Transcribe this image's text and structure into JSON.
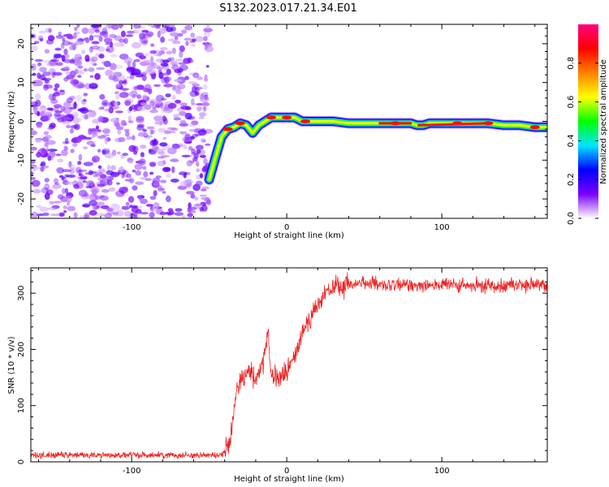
{
  "figure": {
    "title": "S132.2023.017.21.34.E01"
  },
  "chart_data": [
    {
      "type": "heatmap",
      "xlabel": "Height of straight line (km)",
      "ylabel": "Frequency (Hz)",
      "xlim": [
        -165,
        168
      ],
      "ylim": [
        -25,
        25
      ],
      "xticks": [
        -100,
        0,
        100
      ],
      "xtick_labels": [
        "-100",
        "0",
        "100"
      ],
      "yticks": [
        -20,
        -10,
        0,
        10,
        20
      ],
      "ytick_labels": [
        "-20",
        "-10",
        "0",
        "10",
        "20"
      ],
      "colorbar": {
        "label": "Normalized spectral amplitude",
        "range": [
          0,
          1
        ],
        "ticks": [
          0.0,
          0.2,
          0.4,
          0.6,
          0.8
        ],
        "tick_labels": [
          "0.0",
          "0.2",
          "0.4",
          "0.6",
          "0.8"
        ],
        "colors": [
          "#ffffff",
          "#7a00ff",
          "#0000ff",
          "#00e5ff",
          "#00ff00",
          "#ffff00",
          "#ff8000",
          "#ff0000",
          "#ff0080"
        ]
      },
      "noise_region_x": [
        -165,
        -50
      ],
      "ridge": {
        "x": [
          -50,
          -45,
          -42,
          -38,
          -34,
          -30,
          -26,
          -22,
          -18,
          -14,
          -10,
          -5,
          0,
          5,
          10,
          15,
          20,
          30,
          40,
          50,
          60,
          70,
          80,
          84,
          88,
          92,
          100,
          110,
          120,
          130,
          140,
          150,
          160,
          168
        ],
        "y": [
          -15,
          -8,
          -4,
          -2,
          -1.5,
          -0.5,
          -1,
          -3,
          -1,
          0,
          1,
          1,
          1,
          1,
          0,
          0,
          0,
          0,
          -0.5,
          -0.5,
          -0.5,
          -0.5,
          -0.5,
          -1,
          -1,
          -0.5,
          -0.5,
          -0.5,
          -0.5,
          -0.5,
          -1,
          -1,
          -1.5,
          -1.5
        ]
      },
      "ridge_peaks_x": [
        -38,
        -30,
        -10,
        0,
        12,
        70,
        110,
        130,
        160
      ]
    },
    {
      "type": "line",
      "xlabel": "Height of straight line (km)",
      "ylabel": "SNR (10 * v/v)",
      "xlim": [
        -165,
        168
      ],
      "ylim": [
        0,
        345
      ],
      "xticks": [
        -100,
        0,
        100
      ],
      "xtick_labels": [
        "-100",
        "0",
        "100"
      ],
      "yticks": [
        0,
        100,
        200,
        300
      ],
      "ytick_labels": [
        "0",
        "100",
        "200",
        "300"
      ],
      "line_color": "#ee2222",
      "series": [
        {
          "x": [
            -165,
            -140,
            -120,
            -100,
            -80,
            -60,
            -42,
            -37,
            -34,
            -30,
            -25,
            -20,
            -15,
            -12,
            -10,
            -5,
            0,
            5,
            10,
            15,
            20,
            25,
            30,
            35,
            40,
            50,
            55,
            60,
            80,
            100,
            120,
            140,
            160,
            168
          ],
          "y": [
            12,
            12,
            12,
            12,
            12,
            12,
            12,
            30,
            100,
            150,
            160,
            150,
            175,
            225,
            150,
            150,
            160,
            185,
            230,
            260,
            275,
            300,
            310,
            310,
            315,
            320,
            318,
            312,
            315,
            315,
            312,
            315,
            315,
            310
          ]
        }
      ]
    }
  ]
}
